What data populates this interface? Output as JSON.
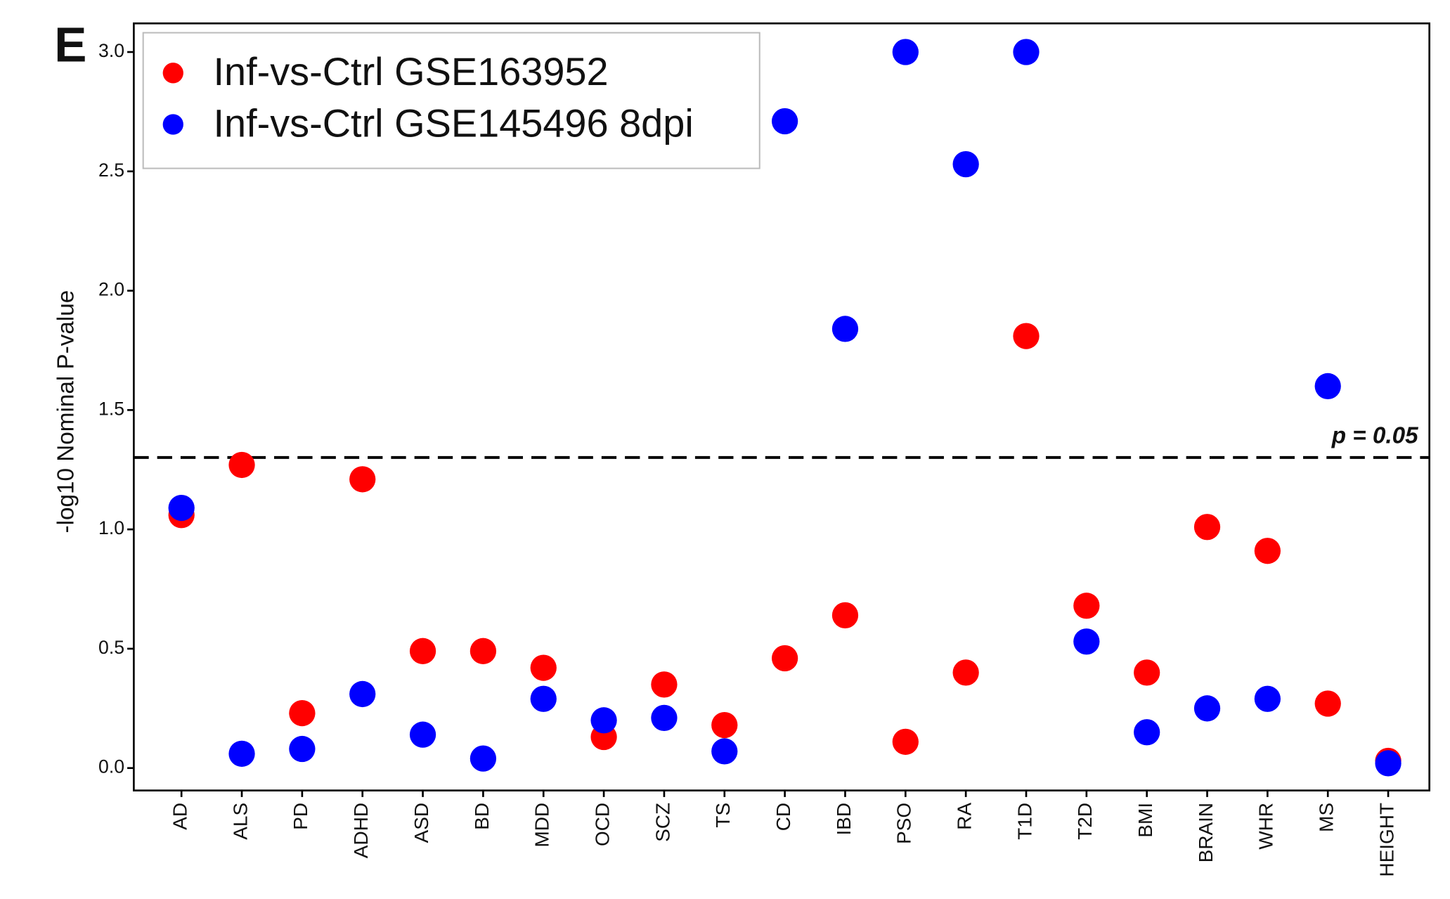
{
  "chart_data": {
    "type": "scatter",
    "panel_label": "E",
    "y_label": "-log10 Nominal P-value",
    "categories": [
      "AD",
      "ALS",
      "PD",
      "ADHD",
      "ASD",
      "BD",
      "MDD",
      "OCD",
      "SCZ",
      "TS",
      "CD",
      "IBD",
      "PSO",
      "RA",
      "T1D",
      "T2D",
      "BMI",
      "BRAIN",
      "WHR",
      "MS",
      "HEIGHT"
    ],
    "series": [
      {
        "name": "Inf-vs-Ctrl GSE163952",
        "color": "#ff0000",
        "values": [
          1.06,
          1.27,
          0.23,
          1.21,
          0.49,
          0.49,
          0.42,
          0.13,
          0.35,
          0.18,
          0.46,
          0.64,
          0.11,
          0.4,
          1.81,
          0.68,
          0.4,
          1.01,
          0.91,
          0.27,
          0.03
        ]
      },
      {
        "name": "Inf-vs-Ctrl GSE145496 8dpi",
        "color": "#0000ff",
        "values": [
          1.09,
          0.06,
          0.08,
          0.31,
          0.14,
          0.04,
          0.29,
          0.2,
          0.21,
          0.07,
          2.71,
          1.84,
          3.0,
          2.53,
          3.0,
          0.53,
          0.15,
          0.25,
          0.29,
          1.6,
          0.02
        ]
      }
    ],
    "ylim": [
      -0.094,
      3.12
    ],
    "yticks": [
      {
        "value": 0,
        "label": "0.0"
      },
      0.5,
      {
        "value": 1,
        "label": "1.0"
      },
      1.5,
      {
        "value": 2,
        "label": "2.0"
      },
      2.5,
      {
        "value": 3,
        "label": "3.0"
      }
    ],
    "threshold": {
      "value": 1.301,
      "label": "p = 0.05"
    },
    "legend": "top-left"
  }
}
